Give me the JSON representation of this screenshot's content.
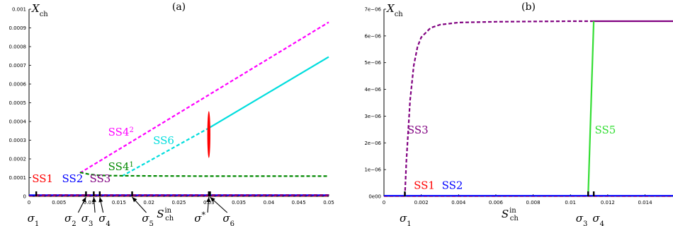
{
  "chart_data": [
    {
      "type": "line",
      "title": "(a)",
      "ylabel": "X",
      "ylabel_sub": "ch",
      "xlabel": "S",
      "xlabel_sup": "in",
      "xlabel_sub": "ch",
      "xlim": [
        0,
        0.05
      ],
      "ylim": [
        0,
        0.001
      ],
      "xticks": [
        "0",
        "0.005",
        "0.01",
        "0.015",
        "0.02",
        "0.025",
        "0.03",
        "0.035",
        "0.04",
        "0.045",
        "0.05"
      ],
      "xtick_values": [
        0,
        0.005,
        0.01,
        0.015,
        0.02,
        0.025,
        0.03,
        0.035,
        0.04,
        0.045,
        0.05
      ],
      "yticks": [
        "0",
        "0.0001",
        "0.0002",
        "0.0003",
        "0.0004",
        "0.0005",
        "0.0006",
        "0.0007",
        "0.0008",
        "0.0009",
        "0.001"
      ],
      "ytick_values": [
        0,
        0.0001,
        0.0002,
        0.0003,
        0.0004,
        0.0005,
        0.0006,
        0.0007,
        0.0008,
        0.0009,
        0.001
      ],
      "series": [
        {
          "name": "SS4²",
          "color": "#ff00ff",
          "style": "dashed",
          "x": [
            0.0085,
            0.05
          ],
          "y": [
            0.000125,
            0.00093
          ]
        },
        {
          "name": "SS6",
          "color": "#00dddd",
          "style": "dashed",
          "x": [
            0.0155,
            0.03
          ],
          "y": [
            0.000108,
            0.000365
          ]
        },
        {
          "name": "SS6",
          "color": "#00dddd",
          "style": "solid",
          "x": [
            0.03,
            0.05
          ],
          "y": [
            0.000365,
            0.000745
          ]
        },
        {
          "name": "SS4¹",
          "color": "#008800",
          "style": "dashed",
          "x": [
            0.0085,
            0.01,
            0.0115,
            0.013,
            0.015,
            0.02,
            0.03,
            0.04,
            0.05
          ],
          "y": [
            0.000128,
            0.000118,
            0.000113,
            0.000111,
            0.00011,
            0.000109,
            0.000108,
            0.000108,
            0.000108
          ]
        },
        {
          "name": "SS1",
          "color": "#ff0000",
          "style": "dashed",
          "x": [
            0,
            0.05
          ],
          "y": [
            3e-06,
            3e-06
          ]
        },
        {
          "name": "SS2",
          "color": "#0000ff",
          "style": "solid",
          "x": [
            0,
            0.05
          ],
          "y": [
            6e-06,
            6e-06
          ]
        },
        {
          "name": "SS3",
          "color": "#800080",
          "style": "dashed",
          "x": [
            0.0012,
            0.05
          ],
          "y": [
            7e-06,
            7e-06
          ]
        }
      ],
      "red_ellipse": {
        "x": 0.03,
        "y_center": 0.00033,
        "y_half": 0.000125,
        "color": "#ff0000"
      },
      "markers_x": [
        0.0012,
        0.0095,
        0.0108,
        0.0118,
        0.0172,
        0.03,
        0.0302
      ],
      "series_labels": [
        {
          "text": "SS1",
          "color": "#ff0000",
          "x": 0.0005,
          "y": 7.5e-05
        },
        {
          "text": "SS2",
          "color": "#0000ff",
          "x": 0.0055,
          "y": 7.5e-05
        },
        {
          "text": "SS3",
          "color": "#800080",
          "x": 0.0101,
          "y": 7.5e-05
        },
        {
          "text": "SS4",
          "sup": "1",
          "color": "#008800",
          "x": 0.0132,
          "y": 0.00014
        },
        {
          "text": "SS4",
          "sup": "2",
          "color": "#ff00ff",
          "x": 0.0132,
          "y": 0.000325
        },
        {
          "text": "SS6",
          "color": "#00dddd",
          "x": 0.0207,
          "y": 0.00028
        }
      ],
      "annotations": [
        {
          "sym": "σ",
          "sub": "1",
          "tip": 0.0012,
          "tx": 0.0007
        },
        {
          "sym": "σ",
          "sub": "2",
          "tip": 0.0095,
          "tx": 0.0069
        },
        {
          "sym": "σ",
          "sub": "3",
          "tip": 0.0108,
          "tx": 0.0097
        },
        {
          "sym": "σ",
          "sub": "4",
          "tip": 0.0118,
          "tx": 0.0126
        },
        {
          "sym": "σ",
          "sub": "5",
          "tip": 0.0172,
          "tx": 0.0198
        },
        {
          "sym": "σ",
          "sup": "*",
          "tip": 0.03,
          "tx": 0.0285
        },
        {
          "sym": "σ",
          "sub": "6",
          "tip": 0.0302,
          "tx": 0.0333
        }
      ]
    },
    {
      "type": "line",
      "title": "(b)",
      "ylabel": "X",
      "ylabel_sub": "ch",
      "xlabel": "S",
      "xlabel_sup": "in",
      "xlabel_sub": "ch",
      "xlim": [
        0,
        0.0155
      ],
      "ylim": [
        0,
        7e-06
      ],
      "xticks": [
        "0",
        "0.002",
        "0.004",
        "0.006",
        "0.008",
        "0.01",
        "0.012",
        "0.014"
      ],
      "xtick_values": [
        0,
        0.002,
        0.004,
        0.006,
        0.008,
        0.01,
        0.012,
        0.014
      ],
      "yticks": [
        "0e00",
        "1e−06",
        "2e−06",
        "3e−06",
        "4e−06",
        "5e−06",
        "6e−06",
        "7e−06"
      ],
      "ytick_values": [
        0,
        1e-06,
        2e-06,
        3e-06,
        4e-06,
        5e-06,
        6e-06,
        7e-06
      ],
      "series": [
        {
          "name": "SS3",
          "color": "#800080",
          "style": "dashed",
          "x": [
            0.00112,
            0.0012,
            0.0014,
            0.0016,
            0.0018,
            0.002,
            0.0025,
            0.003,
            0.004,
            0.006,
            0.008,
            0.01,
            0.0112
          ],
          "y": [
            0,
            1.3e-06,
            3.6e-06,
            4.9e-06,
            5.6e-06,
            5.95e-06,
            6.3e-06,
            6.42e-06,
            6.5e-06,
            6.53e-06,
            6.54e-06,
            6.55e-06,
            6.55e-06
          ]
        },
        {
          "name": "SS3",
          "color": "#800080",
          "style": "solid",
          "x": [
            0.0112,
            0.0155
          ],
          "y": [
            6.55e-06,
            6.55e-06
          ]
        },
        {
          "name": "SS5",
          "color": "#33dd33",
          "style": "solid",
          "x": [
            0.01095,
            0.01125
          ],
          "y": [
            0,
            6.55e-06
          ]
        },
        {
          "name": "SS1",
          "color": "#ff0000",
          "style": "dashed",
          "x": [
            0,
            0.0155
          ],
          "y": [
            1e-08,
            1e-08
          ]
        },
        {
          "name": "SS2",
          "color": "#0000ff",
          "style": "solid",
          "x": [
            0,
            0.0155
          ],
          "y": [
            2e-08,
            2e-08
          ]
        }
      ],
      "markers_x": [
        0.00112,
        0.01095,
        0.01125
      ],
      "series_labels": [
        {
          "text": "SS1",
          "color": "#ff0000",
          "x": 0.0016,
          "y": 2.8e-07
        },
        {
          "text": "SS2",
          "color": "#0000ff",
          "x": 0.0031,
          "y": 2.8e-07
        },
        {
          "text": "SS3",
          "color": "#800080",
          "x": 0.00125,
          "y": 2.35e-06
        },
        {
          "text": "SS5",
          "color": "#33dd33",
          "x": 0.0113,
          "y": 2.35e-06
        }
      ],
      "annotations": [
        {
          "sym": "σ",
          "sub": "1",
          "label_x": 0.00115
        },
        {
          "sym": "σ",
          "sub": "3",
          "label_x": 0.0106
        },
        {
          "sym": "σ",
          "sub": "4",
          "label_x": 0.0115
        }
      ]
    }
  ]
}
